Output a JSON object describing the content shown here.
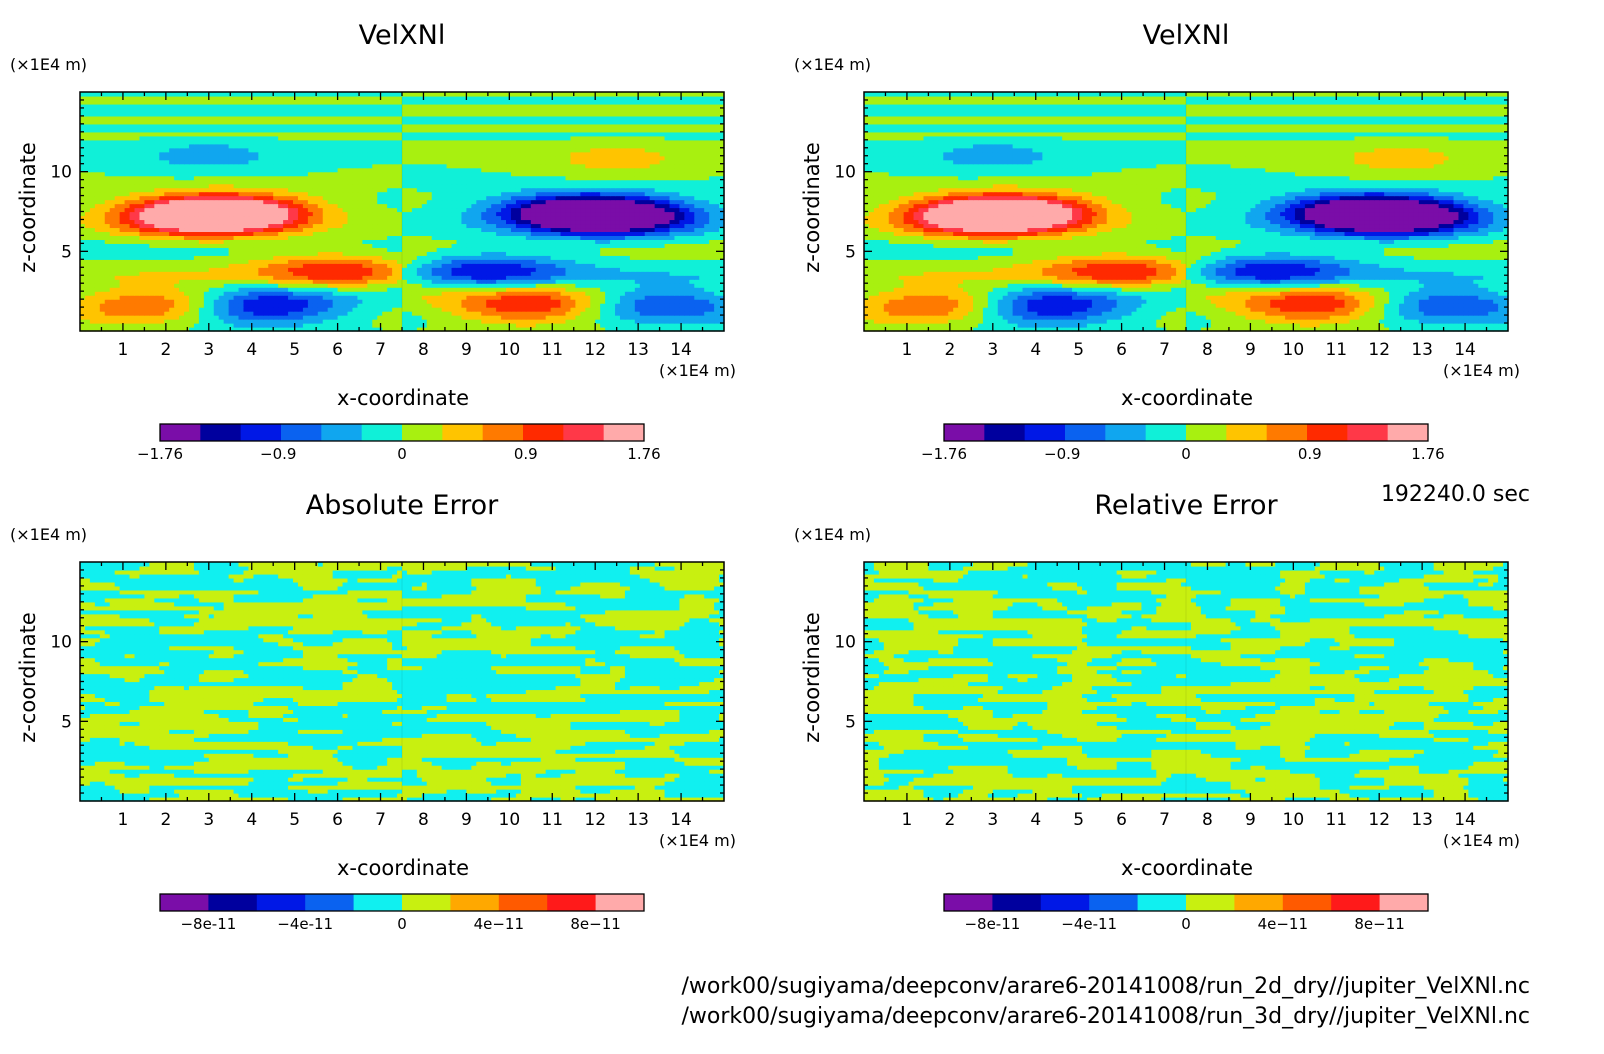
{
  "footer": {
    "time": "192240.0 sec",
    "paths": [
      "/work00/sugiyama/deepconv/arare6-20141008/run_2d_dry//jupiter_VelXNl.nc",
      "/work00/sugiyama/deepconv/arare6-20141008/run_3d_dry//jupiter_VelXNl.nc"
    ]
  },
  "colors": {
    "velocity_levels": [
      "#7a0da8",
      "#00009e",
      "#0018e6",
      "#0a62f0",
      "#10a6ef",
      "#10f0d8",
      "#a8f010",
      "#ffc400",
      "#ff7a00",
      "#ff2a00",
      "#ff3848",
      "#ffaaaa"
    ],
    "error_levels": [
      "#7a0da8",
      "#00009e",
      "#0018e6",
      "#0a62f0",
      "#10f0f0",
      "#c8f010",
      "#ffa800",
      "#ff5a00",
      "#ff1a1a",
      "#ffaaaa"
    ]
  },
  "chart_data": [
    {
      "type": "heatmap",
      "title": "VelXNl",
      "xlabel": "x-coordinate",
      "ylabel": "z-coordinate",
      "x_unit": "(×1E4 m)",
      "y_unit": "(×1E4 m)",
      "x_ticks": [
        "1",
        "2",
        "3",
        "4",
        "5",
        "6",
        "7",
        "8",
        "9",
        "10",
        "11",
        "12",
        "13",
        "14"
      ],
      "y_ticks": [
        "5",
        "10"
      ],
      "xlim": [
        0,
        15
      ],
      "ylim": [
        0,
        15
      ],
      "colorbar": {
        "min": -1.76,
        "max": 1.76,
        "tick_labels": [
          "-1.76",
          "-0.9",
          "0",
          "0.9",
          "1.76"
        ]
      },
      "field": "velocity",
      "features": [
        {
          "x": 3.5,
          "z": 7.5,
          "value": 1.6
        },
        {
          "x": 2.8,
          "z": 7.2,
          "value": 1.76
        },
        {
          "x": 11.5,
          "z": 7.5,
          "value": -1.6
        },
        {
          "x": 12.5,
          "z": 7.2,
          "value": -1.76
        },
        {
          "x": 4.2,
          "z": 1.5,
          "value": -1.3
        },
        {
          "x": 10.5,
          "z": 1.6,
          "value": 1.2
        },
        {
          "x": 6,
          "z": 3.8,
          "value": 1.0
        },
        {
          "x": 9.5,
          "z": 3.8,
          "value": -1.0
        },
        {
          "x": 1.8,
          "z": 1.8,
          "value": 1.1
        },
        {
          "x": 13.5,
          "z": 1.8,
          "value": -1.0
        },
        {
          "x": 12.5,
          "z": 10.8,
          "value": 0.4
        },
        {
          "x": 3,
          "z": 11,
          "value": -0.4
        }
      ]
    },
    {
      "type": "heatmap",
      "title": "VelXNl",
      "xlabel": "x-coordinate",
      "ylabel": "z-coordinate",
      "x_unit": "(×1E4 m)",
      "y_unit": "(×1E4 m)",
      "x_ticks": [
        "1",
        "2",
        "3",
        "4",
        "5",
        "6",
        "7",
        "8",
        "9",
        "10",
        "11",
        "12",
        "13",
        "14"
      ],
      "y_ticks": [
        "5",
        "10"
      ],
      "xlim": [
        0,
        15
      ],
      "ylim": [
        0,
        15
      ],
      "colorbar": {
        "min": -1.76,
        "max": 1.76,
        "tick_labels": [
          "-1.76",
          "-0.9",
          "0",
          "0.9",
          "1.76"
        ]
      },
      "field": "velocity",
      "features": [
        {
          "x": 3.5,
          "z": 7.5,
          "value": 1.6
        },
        {
          "x": 2.8,
          "z": 7.2,
          "value": 1.76
        },
        {
          "x": 11.5,
          "z": 7.5,
          "value": -1.6
        },
        {
          "x": 12.5,
          "z": 7.2,
          "value": -1.76
        },
        {
          "x": 4.2,
          "z": 1.5,
          "value": -1.3
        },
        {
          "x": 10.5,
          "z": 1.6,
          "value": 1.2
        },
        {
          "x": 6,
          "z": 3.8,
          "value": 1.0
        },
        {
          "x": 9.5,
          "z": 3.8,
          "value": -1.0
        },
        {
          "x": 1.8,
          "z": 1.8,
          "value": 1.1
        },
        {
          "x": 13.5,
          "z": 1.8,
          "value": -1.0
        },
        {
          "x": 12.5,
          "z": 10.8,
          "value": 0.4
        },
        {
          "x": 3,
          "z": 11,
          "value": -0.4
        }
      ]
    },
    {
      "type": "heatmap",
      "title": "Absolute Error",
      "xlabel": "x-coordinate",
      "ylabel": "z-coordinate",
      "x_unit": "(×1E4 m)",
      "y_unit": "(×1E4 m)",
      "x_ticks": [
        "1",
        "2",
        "3",
        "4",
        "5",
        "6",
        "7",
        "8",
        "9",
        "10",
        "11",
        "12",
        "13",
        "14"
      ],
      "y_ticks": [
        "5",
        "10"
      ],
      "xlim": [
        0,
        15
      ],
      "ylim": [
        0,
        15
      ],
      "colorbar": {
        "min": -1e-10,
        "max": 1e-10,
        "tick_labels": [
          "-8e-11",
          "-4e-11",
          "0",
          "4e-11",
          "8e-11"
        ]
      },
      "field": "error"
    },
    {
      "type": "heatmap",
      "title": "Relative Error",
      "xlabel": "x-coordinate",
      "ylabel": "z-coordinate",
      "x_unit": "(×1E4 m)",
      "y_unit": "(×1E4 m)",
      "x_ticks": [
        "1",
        "2",
        "3",
        "4",
        "5",
        "6",
        "7",
        "8",
        "9",
        "10",
        "11",
        "12",
        "13",
        "14"
      ],
      "y_ticks": [
        "5",
        "10"
      ],
      "xlim": [
        0,
        15
      ],
      "ylim": [
        0,
        15
      ],
      "colorbar": {
        "min": -1e-10,
        "max": 1e-10,
        "tick_labels": [
          "-8e-11",
          "-4e-11",
          "0",
          "4e-11",
          "8e-11"
        ]
      },
      "field": "error"
    }
  ]
}
